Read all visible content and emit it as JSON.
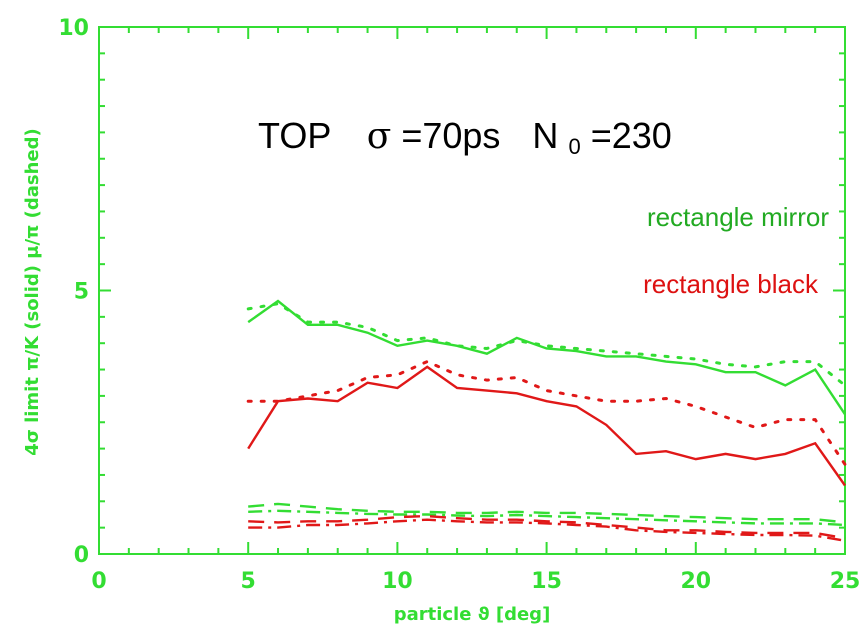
{
  "chart_data": {
    "type": "line",
    "title": {
      "main": "TOP",
      "sigma_symbol": "σ",
      "sigma_value": "=70ps",
      "n_main": "N",
      "n_sub": "0",
      "n_value": "=230"
    },
    "xlabel": "particle ϑ [deg]",
    "ylabel": "4σ limit π/K (solid) μ/π (dashed)",
    "xlim": [
      0,
      25
    ],
    "ylim": [
      0,
      10
    ],
    "x_ticks": [
      "0",
      "5",
      "10",
      "15",
      "20",
      "25"
    ],
    "y_ticks": [
      "0",
      "5",
      "10"
    ],
    "grid": false,
    "legend_placement": "right",
    "legend": [
      {
        "label": "rectangle mirror",
        "color": "#22aa22"
      },
      {
        "label": "rectangle black",
        "color": "#dd1111"
      }
    ],
    "colors": {
      "green": "#33dd33",
      "red": "#e01818",
      "axis": "#33dd33"
    },
    "series": [
      {
        "group": "rectangle mirror",
        "quantity": "π/K",
        "style": "solid",
        "color": "#33dd33",
        "x": [
          5,
          6,
          7,
          8,
          9,
          10,
          11,
          12,
          13,
          14,
          15,
          16,
          17,
          18,
          19,
          20,
          21,
          22,
          23,
          24,
          25
        ],
        "y": [
          4.4,
          4.8,
          4.35,
          4.35,
          4.2,
          3.95,
          4.05,
          3.95,
          3.8,
          4.1,
          3.9,
          3.85,
          3.75,
          3.75,
          3.65,
          3.6,
          3.45,
          3.45,
          3.2,
          3.5,
          2.65
        ]
      },
      {
        "group": "rectangle mirror",
        "quantity": "π/K",
        "style": "dotted",
        "color": "#33dd33",
        "x": [
          5,
          6,
          7,
          8,
          9,
          10,
          11,
          12,
          13,
          14,
          15,
          16,
          17,
          18,
          19,
          20,
          21,
          22,
          23,
          24,
          25
        ],
        "y": [
          4.65,
          4.75,
          4.4,
          4.4,
          4.3,
          4.05,
          4.1,
          3.95,
          3.9,
          4.05,
          3.95,
          3.9,
          3.85,
          3.8,
          3.75,
          3.7,
          3.6,
          3.55,
          3.65,
          3.65,
          3.2
        ]
      },
      {
        "group": "rectangle black",
        "quantity": "π/K",
        "style": "solid",
        "color": "#e01818",
        "x": [
          5,
          6,
          7,
          8,
          9,
          10,
          11,
          12,
          13,
          14,
          15,
          16,
          17,
          18,
          19,
          20,
          21,
          22,
          23,
          24,
          25
        ],
        "y": [
          2.0,
          2.9,
          2.95,
          2.9,
          3.25,
          3.15,
          3.55,
          3.15,
          3.1,
          3.05,
          2.9,
          2.8,
          2.45,
          1.9,
          1.95,
          1.8,
          1.9,
          1.8,
          1.9,
          2.1,
          1.3
        ]
      },
      {
        "group": "rectangle black",
        "quantity": "π/K",
        "style": "dotted",
        "color": "#e01818",
        "x": [
          5,
          6,
          7,
          8,
          9,
          10,
          11,
          12,
          13,
          14,
          15,
          16,
          17,
          18,
          19,
          20,
          21,
          22,
          23,
          24,
          25
        ],
        "y": [
          2.9,
          2.9,
          3.0,
          3.1,
          3.35,
          3.4,
          3.65,
          3.4,
          3.3,
          3.35,
          3.1,
          3.0,
          2.9,
          2.9,
          2.95,
          2.8,
          2.6,
          2.4,
          2.55,
          2.55,
          1.7
        ]
      },
      {
        "group": "rectangle mirror",
        "quantity": "μ/π",
        "style": "dashed",
        "color": "#33dd33",
        "x": [
          5,
          6,
          7,
          8,
          9,
          10,
          11,
          12,
          13,
          14,
          15,
          16,
          17,
          18,
          19,
          20,
          21,
          22,
          23,
          24,
          25
        ],
        "y": [
          0.9,
          0.95,
          0.9,
          0.85,
          0.82,
          0.8,
          0.8,
          0.78,
          0.78,
          0.8,
          0.78,
          0.78,
          0.76,
          0.74,
          0.72,
          0.7,
          0.68,
          0.66,
          0.66,
          0.66,
          0.6
        ]
      },
      {
        "group": "rectangle mirror",
        "quantity": "μ/π",
        "style": "dash-dot",
        "color": "#33dd33",
        "x": [
          5,
          6,
          7,
          8,
          9,
          10,
          11,
          12,
          13,
          14,
          15,
          16,
          17,
          18,
          19,
          20,
          21,
          22,
          23,
          24,
          25
        ],
        "y": [
          0.8,
          0.82,
          0.8,
          0.78,
          0.76,
          0.75,
          0.75,
          0.73,
          0.72,
          0.74,
          0.72,
          0.7,
          0.68,
          0.66,
          0.64,
          0.62,
          0.6,
          0.58,
          0.58,
          0.58,
          0.55
        ]
      },
      {
        "group": "rectangle black",
        "quantity": "μ/π",
        "style": "dashed",
        "color": "#e01818",
        "x": [
          5,
          6,
          7,
          8,
          9,
          10,
          11,
          12,
          13,
          14,
          15,
          16,
          17,
          18,
          19,
          20,
          21,
          22,
          23,
          24,
          25
        ],
        "y": [
          0.62,
          0.6,
          0.62,
          0.62,
          0.65,
          0.7,
          0.72,
          0.68,
          0.65,
          0.65,
          0.62,
          0.6,
          0.55,
          0.5,
          0.45,
          0.45,
          0.42,
          0.4,
          0.4,
          0.4,
          0.3
        ]
      },
      {
        "group": "rectangle black",
        "quantity": "μ/π",
        "style": "dash-dot",
        "color": "#e01818",
        "x": [
          5,
          6,
          7,
          8,
          9,
          10,
          11,
          12,
          13,
          14,
          15,
          16,
          17,
          18,
          19,
          20,
          21,
          22,
          23,
          24,
          25
        ],
        "y": [
          0.5,
          0.5,
          0.55,
          0.55,
          0.58,
          0.62,
          0.65,
          0.62,
          0.6,
          0.6,
          0.58,
          0.55,
          0.52,
          0.45,
          0.42,
          0.4,
          0.38,
          0.36,
          0.36,
          0.35,
          0.25
        ]
      }
    ]
  }
}
